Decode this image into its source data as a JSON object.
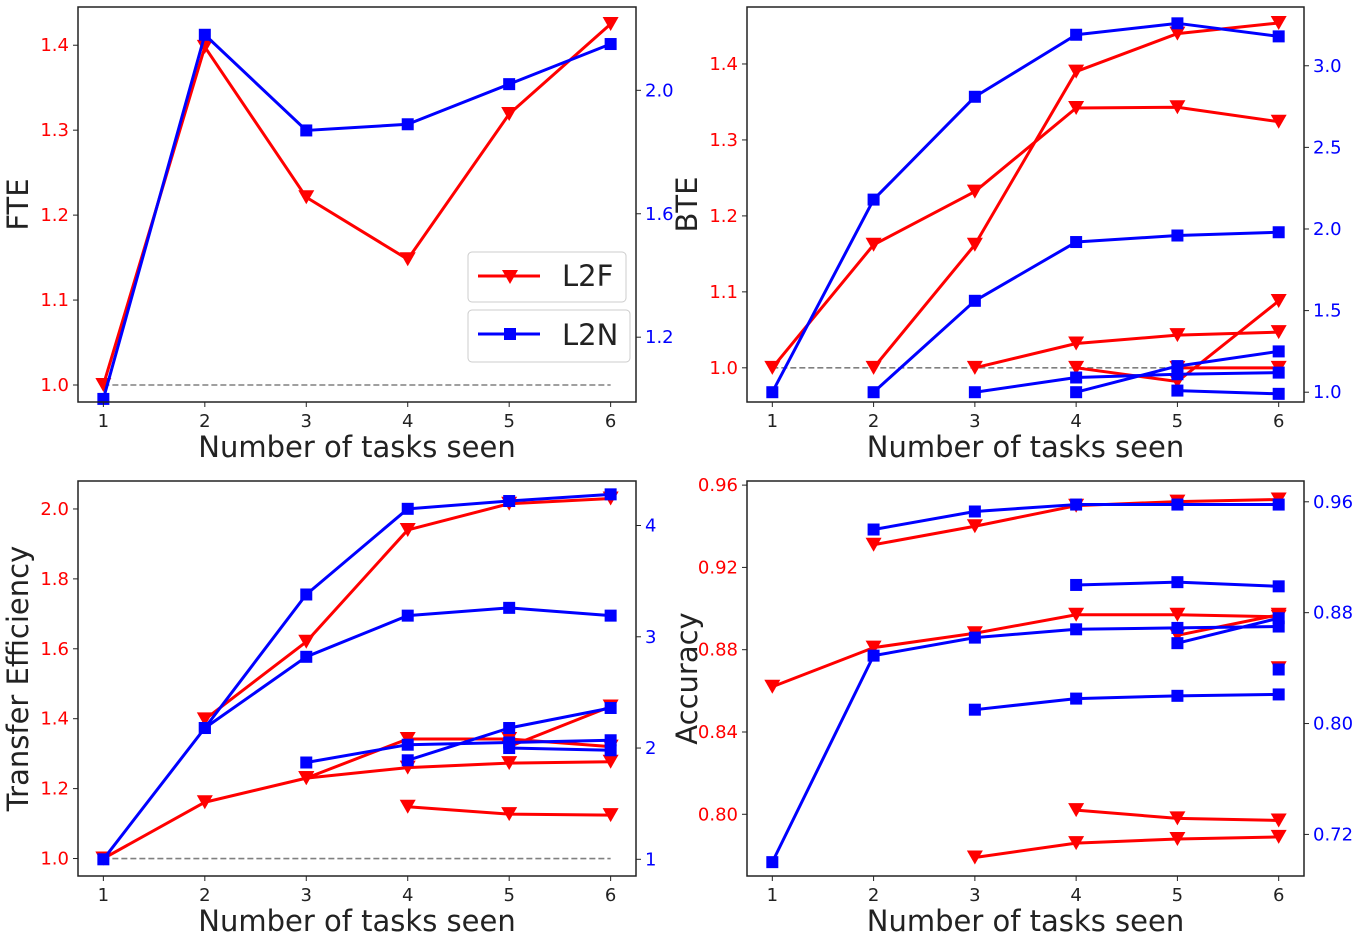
{
  "colors": {
    "l2f": "#ff0000",
    "l2n": "#0000ff",
    "baseline": "#808080",
    "axis": "#222222"
  },
  "legend": {
    "l2f_label": "L2F",
    "l2n_label": "L2N"
  },
  "chart_data": [
    {
      "type": "line",
      "xlabel": "Number of tasks seen",
      "ylabel": "FTE",
      "x_ticks": [
        1,
        2,
        3,
        4,
        5,
        6
      ],
      "ylim": [
        0.98,
        1.445
      ],
      "y2lim": [
        0.99,
        2.27
      ],
      "y_ticks": [
        1.0,
        1.1,
        1.2,
        1.3,
        1.4
      ],
      "y2_ticks": [
        1.2,
        1.6,
        2.0
      ],
      "y_fmt": 1,
      "y2_fmt": 1,
      "baseline": {
        "value": 1.0,
        "axis": "y"
      },
      "legend": true,
      "series": [
        {
          "name": "L2F",
          "axis": "y",
          "color": "#ff0000",
          "marker": "triangle-down",
          "x": [
            1,
            2,
            3,
            4,
            5,
            6
          ],
          "values": [
            1.0,
            1.398,
            1.221,
            1.148,
            1.319,
            1.425
          ]
        },
        {
          "name": "L2N",
          "axis": "y2",
          "color": "#0000ff",
          "marker": "square",
          "x": [
            1,
            2,
            3,
            4,
            5,
            6
          ],
          "values": [
            1.0,
            2.18,
            1.87,
            1.89,
            2.02,
            2.15
          ]
        }
      ]
    },
    {
      "type": "line",
      "xlabel": "Number of tasks seen",
      "ylabel": "BTE",
      "x_ticks": [
        1,
        2,
        3,
        4,
        5,
        6
      ],
      "ylim": [
        0.955,
        1.475
      ],
      "y2lim": [
        0.94,
        3.36
      ],
      "y_ticks": [
        1.0,
        1.1,
        1.2,
        1.3,
        1.4
      ],
      "y2_ticks": [
        1.0,
        1.5,
        2.0,
        2.5,
        3.0
      ],
      "y_fmt": 1,
      "y2_fmt": 1,
      "baseline": {
        "value": 1.0,
        "axis": "y"
      },
      "series": [
        {
          "axis": "y",
          "color": "#ff0000",
          "marker": "triangle-down",
          "x": [
            1,
            2,
            3,
            4,
            5,
            6
          ],
          "values": [
            1.0,
            1.162,
            1.232,
            1.342,
            1.343,
            1.324
          ]
        },
        {
          "axis": "y",
          "color": "#ff0000",
          "marker": "triangle-down",
          "x": [
            2,
            3,
            4,
            5,
            6
          ],
          "values": [
            1.0,
            1.162,
            1.39,
            1.44,
            1.454
          ]
        },
        {
          "axis": "y",
          "color": "#ff0000",
          "marker": "triangle-down",
          "x": [
            3,
            4,
            5,
            6
          ],
          "values": [
            1.0,
            1.032,
            1.043,
            1.047
          ]
        },
        {
          "axis": "y",
          "color": "#ff0000",
          "marker": "triangle-down",
          "x": [
            4,
            5,
            6
          ],
          "values": [
            1.0,
            0.982,
            1.088
          ]
        },
        {
          "axis": "y",
          "color": "#ff0000",
          "marker": "triangle-down",
          "x": [
            5,
            6
          ],
          "values": [
            1.0,
            1.0
          ]
        },
        {
          "axis": "y2",
          "color": "#0000ff",
          "marker": "square",
          "x": [
            1,
            2,
            3,
            4,
            5,
            6
          ],
          "values": [
            1.0,
            2.18,
            2.81,
            3.19,
            3.26,
            3.18
          ]
        },
        {
          "axis": "y2",
          "color": "#0000ff",
          "marker": "square",
          "x": [
            2,
            3,
            4,
            5,
            6
          ],
          "values": [
            1.0,
            1.56,
            1.92,
            1.96,
            1.98
          ]
        },
        {
          "axis": "y2",
          "color": "#0000ff",
          "marker": "square",
          "x": [
            3,
            4,
            5,
            6
          ],
          "values": [
            1.0,
            1.09,
            1.11,
            1.12
          ]
        },
        {
          "axis": "y2",
          "color": "#0000ff",
          "marker": "square",
          "x": [
            4,
            5,
            6
          ],
          "values": [
            1.0,
            1.16,
            1.25
          ]
        },
        {
          "axis": "y2",
          "color": "#0000ff",
          "marker": "square",
          "x": [
            5,
            6
          ],
          "values": [
            1.01,
            0.99
          ]
        }
      ]
    },
    {
      "type": "line",
      "xlabel": "Number of tasks seen",
      "ylabel": "Transfer Efficiency",
      "x_ticks": [
        1,
        2,
        3,
        4,
        5,
        6
      ],
      "ylim": [
        0.95,
        2.08
      ],
      "y2lim": [
        0.85,
        4.4
      ],
      "y_ticks": [
        1.0,
        1.2,
        1.4,
        1.6,
        1.8,
        2.0
      ],
      "y2_ticks": [
        1,
        2,
        3,
        4
      ],
      "y_fmt": 1,
      "y2_fmt": 0,
      "baseline": {
        "value": 1.0,
        "axis": "y"
      },
      "series": [
        {
          "axis": "y",
          "color": "#ff0000",
          "marker": "triangle-down",
          "x": [
            1,
            2,
            3,
            4,
            5,
            6
          ],
          "values": [
            1.0,
            1.161,
            1.23,
            1.26,
            1.273,
            1.277
          ]
        },
        {
          "axis": "y",
          "color": "#ff0000",
          "marker": "triangle-down",
          "x": [
            2,
            3,
            4,
            5,
            6
          ],
          "values": [
            1.398,
            1.62,
            1.94,
            2.015,
            2.03
          ]
        },
        {
          "axis": "y",
          "color": "#ff0000",
          "marker": "triangle-down",
          "x": [
            3,
            4,
            5,
            6
          ],
          "values": [
            1.23,
            1.342,
            1.342,
            1.32
          ]
        },
        {
          "axis": "y",
          "color": "#ff0000",
          "marker": "triangle-down",
          "x": [
            4,
            5,
            6
          ],
          "values": [
            1.148,
            1.127,
            1.124
          ]
        },
        {
          "axis": "y",
          "color": "#ff0000",
          "marker": "triangle-down",
          "x": [
            5,
            6
          ],
          "values": [
            1.32,
            1.435
          ]
        },
        {
          "axis": "y2",
          "color": "#0000ff",
          "marker": "square",
          "x": [
            1,
            2,
            3,
            4,
            5,
            6
          ],
          "values": [
            1.0,
            2.18,
            3.38,
            4.15,
            4.22,
            4.28
          ]
        },
        {
          "axis": "y2",
          "color": "#0000ff",
          "marker": "square",
          "x": [
            2,
            3,
            4,
            5,
            6
          ],
          "values": [
            2.18,
            2.82,
            3.19,
            3.26,
            3.19
          ]
        },
        {
          "axis": "y2",
          "color": "#0000ff",
          "marker": "square",
          "x": [
            3,
            4,
            5,
            6
          ],
          "values": [
            1.87,
            2.03,
            2.05,
            2.07
          ]
        },
        {
          "axis": "y2",
          "color": "#0000ff",
          "marker": "square",
          "x": [
            4,
            5,
            6
          ],
          "values": [
            1.89,
            2.18,
            2.36
          ]
        },
        {
          "axis": "y2",
          "color": "#0000ff",
          "marker": "square",
          "x": [
            5,
            6
          ],
          "values": [
            2.0,
            1.98
          ]
        }
      ]
    },
    {
      "type": "line",
      "xlabel": "Number of tasks seen",
      "ylabel": "Accuracy",
      "x_ticks": [
        1,
        2,
        3,
        4,
        5,
        6
      ],
      "ylim": [
        0.77,
        0.962
      ],
      "y2lim": [
        0.69,
        0.975
      ],
      "y_ticks": [
        0.8,
        0.84,
        0.88,
        0.92,
        0.96
      ],
      "y2_ticks": [
        0.72,
        0.8,
        0.88,
        0.96
      ],
      "y_fmt": 2,
      "y2_fmt": 2,
      "series": [
        {
          "axis": "y",
          "color": "#ff0000",
          "marker": "triangle-down",
          "x": [
            1,
            2,
            3,
            4,
            5,
            6
          ],
          "values": [
            0.862,
            0.881,
            0.888,
            0.897,
            0.897,
            0.896
          ]
        },
        {
          "axis": "y",
          "color": "#ff0000",
          "marker": "triangle-down",
          "x": [
            2,
            3,
            4,
            5,
            6
          ],
          "values": [
            0.931,
            0.94,
            0.95,
            0.952,
            0.953
          ]
        },
        {
          "axis": "y",
          "color": "#ff0000",
          "marker": "triangle-down",
          "x": [
            3,
            4,
            5,
            6
          ],
          "values": [
            0.779,
            0.786,
            0.788,
            0.789
          ]
        },
        {
          "axis": "y",
          "color": "#ff0000",
          "marker": "triangle-down",
          "x": [
            4,
            5,
            6
          ],
          "values": [
            0.802,
            0.798,
            0.797
          ]
        },
        {
          "axis": "y",
          "color": "#ff0000",
          "marker": "triangle-down",
          "x": [
            5,
            6
          ],
          "values": [
            0.887,
            0.897
          ]
        },
        {
          "axis": "y",
          "color": "#ff0000",
          "marker": "triangle-down",
          "x": [
            6
          ],
          "values": [
            0.871
          ]
        },
        {
          "axis": "y2",
          "color": "#0000ff",
          "marker": "square",
          "x": [
            1,
            2,
            3,
            4,
            5,
            6
          ],
          "values": [
            0.7,
            0.849,
            0.862,
            0.868,
            0.869,
            0.87
          ]
        },
        {
          "axis": "y2",
          "color": "#0000ff",
          "marker": "square",
          "x": [
            2,
            3,
            4,
            5,
            6
          ],
          "values": [
            0.94,
            0.953,
            0.958,
            0.958,
            0.958
          ]
        },
        {
          "axis": "y2",
          "color": "#0000ff",
          "marker": "square",
          "x": [
            3,
            4,
            5,
            6
          ],
          "values": [
            0.81,
            0.818,
            0.82,
            0.821
          ]
        },
        {
          "axis": "y2",
          "color": "#0000ff",
          "marker": "square",
          "x": [
            4,
            5,
            6
          ],
          "values": [
            0.9,
            0.902,
            0.899
          ]
        },
        {
          "axis": "y2",
          "color": "#0000ff",
          "marker": "square",
          "x": [
            5,
            6
          ],
          "values": [
            0.858,
            0.876
          ]
        },
        {
          "axis": "y2",
          "color": "#0000ff",
          "marker": "square",
          "x": [
            6
          ],
          "values": [
            0.839
          ]
        }
      ]
    }
  ]
}
